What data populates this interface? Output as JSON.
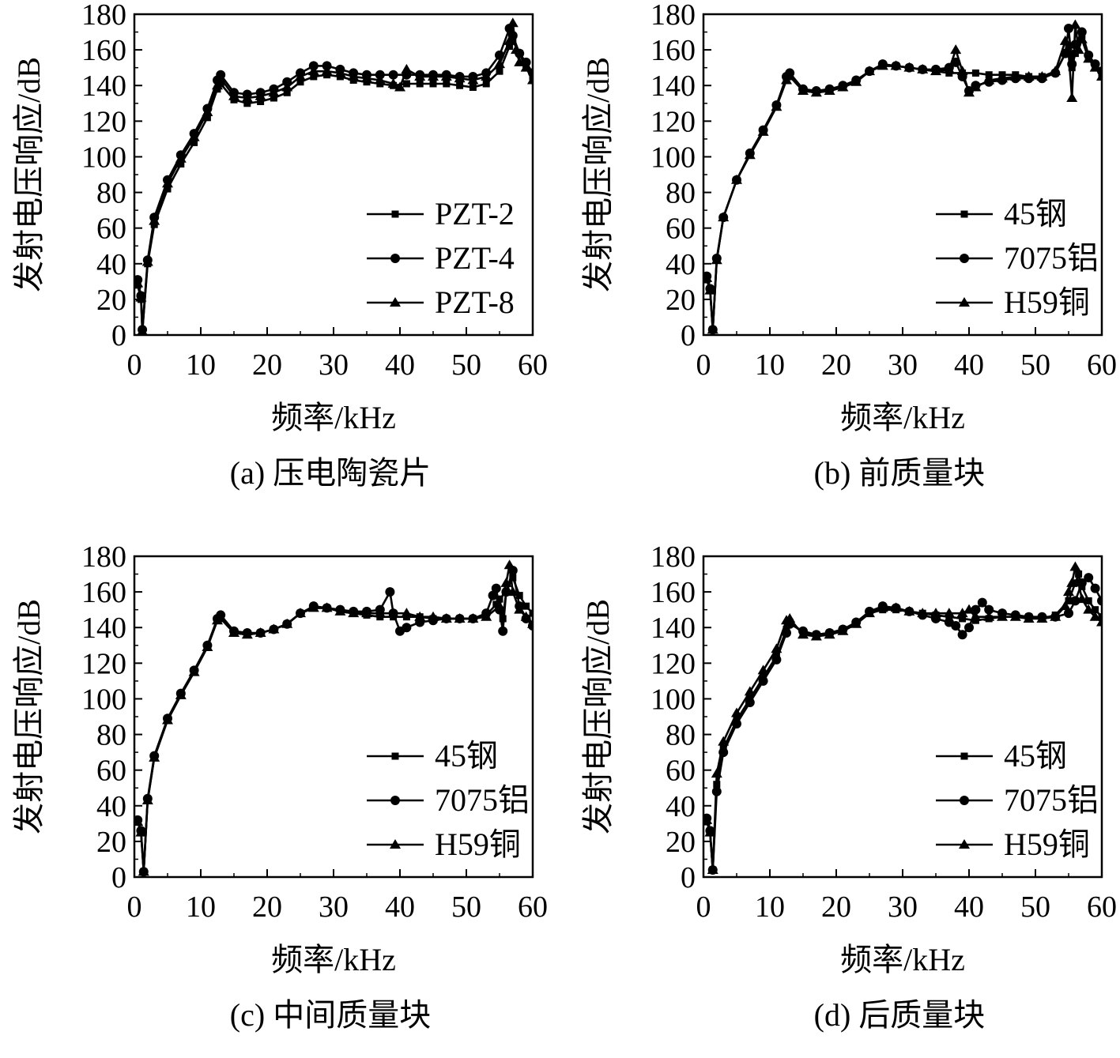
{
  "chart_data": [
    {
      "type": "line",
      "caption": "(a) 压电陶瓷片",
      "xlabel": "频率/kHz",
      "ylabel": "发射电压响应/dB",
      "xlim": [
        0,
        60
      ],
      "ylim": [
        0,
        180
      ],
      "xticks": [
        0,
        10,
        20,
        30,
        40,
        50,
        60
      ],
      "yticks": [
        0,
        20,
        40,
        60,
        80,
        100,
        120,
        140,
        160,
        180
      ],
      "grid": false,
      "legend_position": "right",
      "series": [
        {
          "name": "PZT-2",
          "marker": "square",
          "x": [
            0.5,
            1,
            1.2,
            2,
            3,
            5,
            7,
            9,
            11,
            12.5,
            13,
            15,
            17,
            19,
            21,
            23,
            25,
            27,
            29,
            31,
            33,
            35,
            37,
            39,
            41,
            43,
            45,
            47,
            49,
            51,
            53,
            55,
            56.5,
            57,
            58,
            59,
            60
          ],
          "y": [
            28,
            20,
            2,
            40,
            62,
            82,
            96,
            108,
            122,
            138,
            141,
            132,
            130,
            131,
            133,
            136,
            142,
            145,
            146,
            145,
            143,
            142,
            141,
            140,
            141,
            141,
            141,
            141,
            140,
            139,
            141,
            148,
            162,
            165,
            158,
            150,
            145
          ]
        },
        {
          "name": "PZT-4",
          "marker": "circle",
          "x": [
            0.5,
            1,
            1.2,
            2,
            3,
            5,
            7,
            9,
            11,
            12.5,
            13,
            15,
            17,
            19,
            21,
            23,
            25,
            27,
            29,
            31,
            33,
            35,
            37,
            39,
            41,
            43,
            45,
            47,
            49,
            51,
            53,
            55,
            56.5,
            57,
            58,
            59,
            60
          ],
          "y": [
            31,
            22,
            3,
            42,
            66,
            87,
            101,
            113,
            127,
            143,
            146,
            136,
            135,
            136,
            138,
            142,
            147,
            151,
            151,
            149,
            147,
            146,
            146,
            146,
            146,
            146,
            146,
            146,
            145,
            145,
            147,
            157,
            172,
            168,
            158,
            153,
            147
          ]
        },
        {
          "name": "PZT-8",
          "marker": "triangle",
          "x": [
            0.5,
            1,
            1.2,
            2,
            3,
            5,
            7,
            9,
            11,
            12.5,
            13,
            15,
            17,
            19,
            21,
            23,
            25,
            27,
            29,
            31,
            33,
            35,
            37,
            39,
            40,
            41,
            43,
            45,
            47,
            49,
            51,
            53,
            55,
            56.5,
            57,
            57.5,
            58,
            59,
            60
          ],
          "y": [
            29,
            21,
            2,
            41,
            64,
            85,
            99,
            111,
            125,
            140,
            144,
            134,
            133,
            134,
            136,
            139,
            145,
            148,
            148,
            147,
            145,
            144,
            143,
            141,
            139,
            149,
            145,
            145,
            145,
            144,
            143,
            145,
            152,
            165,
            175,
            160,
            153,
            150,
            143
          ]
        }
      ]
    },
    {
      "type": "line",
      "caption": "(b) 前质量块",
      "xlabel": "频率/kHz",
      "ylabel": "发射电压响应/dB",
      "xlim": [
        0,
        60
      ],
      "ylim": [
        0,
        180
      ],
      "xticks": [
        0,
        10,
        20,
        30,
        40,
        50,
        60
      ],
      "yticks": [
        0,
        20,
        40,
        60,
        80,
        100,
        120,
        140,
        160,
        180
      ],
      "grid": false,
      "legend_position": "right",
      "series": [
        {
          "name": "45钢",
          "marker": "square",
          "x": [
            0.5,
            1,
            1.4,
            2,
            3,
            5,
            7,
            9,
            11,
            12.5,
            13,
            15,
            17,
            19,
            21,
            23,
            25,
            27,
            29,
            31,
            33,
            35,
            37,
            39,
            41,
            43,
            45,
            47,
            49,
            51,
            53,
            54.5,
            55,
            55.5,
            56,
            57,
            58,
            59,
            60
          ],
          "y": [
            31,
            25,
            3,
            42,
            66,
            87,
            101,
            114,
            128,
            144,
            145,
            137,
            136,
            137,
            139,
            142,
            148,
            151,
            151,
            150,
            149,
            148,
            147,
            147,
            147,
            146,
            146,
            146,
            145,
            145,
            147,
            158,
            162,
            150,
            158,
            168,
            155,
            150,
            146
          ]
        },
        {
          "name": "7075铝",
          "marker": "circle",
          "x": [
            0.5,
            1,
            1.4,
            2,
            3,
            5,
            7,
            9,
            11,
            12.5,
            13,
            15,
            17,
            19,
            21,
            23,
            25,
            27,
            29,
            31,
            33,
            35,
            37,
            38,
            39,
            40,
            41,
            43,
            45,
            47,
            49,
            51,
            53,
            54.5,
            55,
            55.5,
            56,
            57,
            58,
            59,
            60
          ],
          "y": [
            33,
            26,
            3,
            43,
            66,
            87,
            102,
            115,
            129,
            145,
            147,
            138,
            137,
            138,
            140,
            143,
            148,
            152,
            151,
            150,
            149,
            149,
            150,
            153,
            145,
            137,
            140,
            142,
            143,
            144,
            144,
            144,
            147,
            158,
            172,
            152,
            163,
            170,
            157,
            152,
            148
          ]
        },
        {
          "name": "H59铜",
          "marker": "triangle",
          "x": [
            0.5,
            1,
            1.4,
            2,
            3,
            5,
            7,
            9,
            11,
            12.5,
            13,
            15,
            17,
            19,
            21,
            23,
            25,
            27,
            29,
            31,
            33,
            35,
            37,
            38,
            39,
            40,
            41,
            43,
            45,
            47,
            49,
            51,
            53,
            54.5,
            55,
            55.5,
            56,
            56.5,
            57,
            58,
            59,
            60
          ],
          "y": [
            32,
            25,
            3,
            42,
            66,
            87,
            101,
            114,
            128,
            143,
            146,
            137,
            136,
            137,
            139,
            142,
            148,
            151,
            151,
            150,
            149,
            148,
            149,
            160,
            148,
            136,
            139,
            143,
            144,
            145,
            145,
            145,
            148,
            165,
            158,
            133,
            174,
            160,
            166,
            155,
            150,
            145
          ]
        }
      ]
    },
    {
      "type": "line",
      "caption": "(c) 中间质量块",
      "xlabel": "频率/kHz",
      "ylabel": "发射电压响应/dB",
      "xlim": [
        0,
        60
      ],
      "ylim": [
        0,
        180
      ],
      "xticks": [
        0,
        10,
        20,
        30,
        40,
        50,
        60
      ],
      "yticks": [
        0,
        20,
        40,
        60,
        80,
        100,
        120,
        140,
        160,
        180
      ],
      "grid": false,
      "legend_position": "right",
      "series": [
        {
          "name": "45钢",
          "marker": "square",
          "x": [
            0.5,
            1,
            1.4,
            2,
            3,
            5,
            7,
            9,
            11,
            12.5,
            13,
            15,
            17,
            19,
            21,
            23,
            25,
            27,
            29,
            31,
            33,
            35,
            37,
            39,
            41,
            43,
            45,
            47,
            49,
            51,
            53,
            54.5,
            55,
            55.5,
            56,
            57,
            58,
            59,
            60
          ],
          "y": [
            31,
            25,
            3,
            43,
            67,
            88,
            102,
            115,
            129,
            144,
            145,
            137,
            136,
            137,
            139,
            142,
            148,
            151,
            151,
            149,
            148,
            147,
            146,
            146,
            146,
            146,
            145,
            145,
            145,
            145,
            147,
            153,
            156,
            145,
            160,
            168,
            158,
            152,
            148
          ]
        },
        {
          "name": "7075铝",
          "marker": "circle",
          "x": [
            0.5,
            1,
            1.4,
            2,
            3,
            5,
            7,
            9,
            11,
            12.5,
            13,
            15,
            17,
            19,
            21,
            23,
            25,
            27,
            29,
            31,
            33,
            35,
            37,
            38.5,
            39,
            40,
            41,
            43,
            45,
            47,
            49,
            51,
            53,
            54,
            54.5,
            55,
            55.5,
            56,
            57,
            58,
            59,
            60
          ],
          "y": [
            32,
            26,
            3,
            44,
            68,
            89,
            103,
            116,
            130,
            145,
            147,
            138,
            137,
            137,
            139,
            142,
            148,
            152,
            151,
            150,
            149,
            149,
            150,
            160,
            148,
            138,
            140,
            143,
            144,
            145,
            145,
            145,
            148,
            158,
            162,
            150,
            138,
            160,
            172,
            152,
            145,
            141
          ]
        },
        {
          "name": "H59铜",
          "marker": "triangle",
          "x": [
            0.5,
            1,
            1.4,
            2,
            3,
            5,
            7,
            9,
            11,
            12.5,
            13,
            15,
            17,
            19,
            21,
            23,
            25,
            27,
            29,
            31,
            33,
            35,
            37,
            39,
            41,
            43,
            45,
            47,
            49,
            51,
            53,
            55,
            56,
            56.5,
            57,
            58,
            59,
            60
          ],
          "y": [
            31,
            25,
            3,
            43,
            67,
            88,
            102,
            115,
            129,
            144,
            146,
            137,
            136,
            137,
            139,
            142,
            148,
            151,
            151,
            149,
            148,
            148,
            148,
            148,
            148,
            146,
            146,
            145,
            145,
            145,
            146,
            152,
            165,
            175,
            160,
            150,
            146,
            142
          ]
        }
      ]
    },
    {
      "type": "line",
      "caption": "(d) 后质量块",
      "xlabel": "频率/kHz",
      "ylabel": "发射电压响应/dB",
      "xlim": [
        0,
        60
      ],
      "ylim": [
        0,
        180
      ],
      "xticks": [
        0,
        10,
        20,
        30,
        40,
        50,
        60
      ],
      "yticks": [
        0,
        20,
        40,
        60,
        80,
        100,
        120,
        140,
        160,
        180
      ],
      "grid": false,
      "legend_position": "right",
      "series": [
        {
          "name": "45钢",
          "marker": "square",
          "x": [
            0.5,
            1,
            1.4,
            2,
            3,
            5,
            7,
            9,
            11,
            12.5,
            13,
            15,
            17,
            19,
            21,
            23,
            25,
            27,
            29,
            31,
            33,
            35,
            37,
            39,
            41,
            43,
            45,
            47,
            49,
            51,
            53,
            55,
            56,
            56.5,
            57,
            58,
            59,
            60
          ],
          "y": [
            31,
            25,
            4,
            52,
            72,
            88,
            100,
            112,
            124,
            139,
            143,
            137,
            136,
            137,
            139,
            142,
            148,
            150,
            150,
            149,
            148,
            147,
            146,
            145,
            144,
            145,
            146,
            146,
            146,
            145,
            147,
            155,
            165,
            170,
            163,
            155,
            150,
            146
          ]
        },
        {
          "name": "7075铝",
          "marker": "circle",
          "x": [
            0.5,
            1,
            1.4,
            2,
            3,
            5,
            7,
            9,
            11,
            12.5,
            13,
            15,
            17,
            19,
            21,
            23,
            25,
            27,
            29,
            31,
            33,
            35,
            37,
            38,
            39,
            40,
            41,
            42,
            43,
            45,
            47,
            49,
            51,
            53,
            55,
            56,
            57,
            58,
            59,
            60
          ],
          "y": [
            33,
            26,
            4,
            48,
            70,
            86,
            98,
            110,
            122,
            137,
            142,
            138,
            136,
            137,
            139,
            143,
            149,
            152,
            151,
            149,
            147,
            145,
            143,
            141,
            136,
            140,
            150,
            154,
            150,
            148,
            147,
            146,
            146,
            146,
            148,
            155,
            165,
            168,
            162,
            155
          ]
        },
        {
          "name": "H59铜",
          "marker": "triangle",
          "x": [
            0.5,
            1,
            1.4,
            2,
            3,
            5,
            7,
            9,
            11,
            12.5,
            13,
            15,
            17,
            19,
            21,
            23,
            25,
            27,
            29,
            31,
            33,
            35,
            37,
            39,
            40,
            41,
            43,
            45,
            47,
            49,
            51,
            53,
            54.5,
            55,
            55.5,
            56,
            57,
            58,
            59,
            60
          ],
          "y": [
            32,
            25,
            4,
            58,
            76,
            92,
            104,
            116,
            128,
            144,
            145,
            136,
            135,
            136,
            138,
            142,
            148,
            151,
            151,
            149,
            148,
            148,
            148,
            148,
            150,
            146,
            146,
            146,
            146,
            145,
            145,
            146,
            152,
            160,
            165,
            174,
            156,
            150,
            146,
            143
          ]
        }
      ]
    }
  ]
}
